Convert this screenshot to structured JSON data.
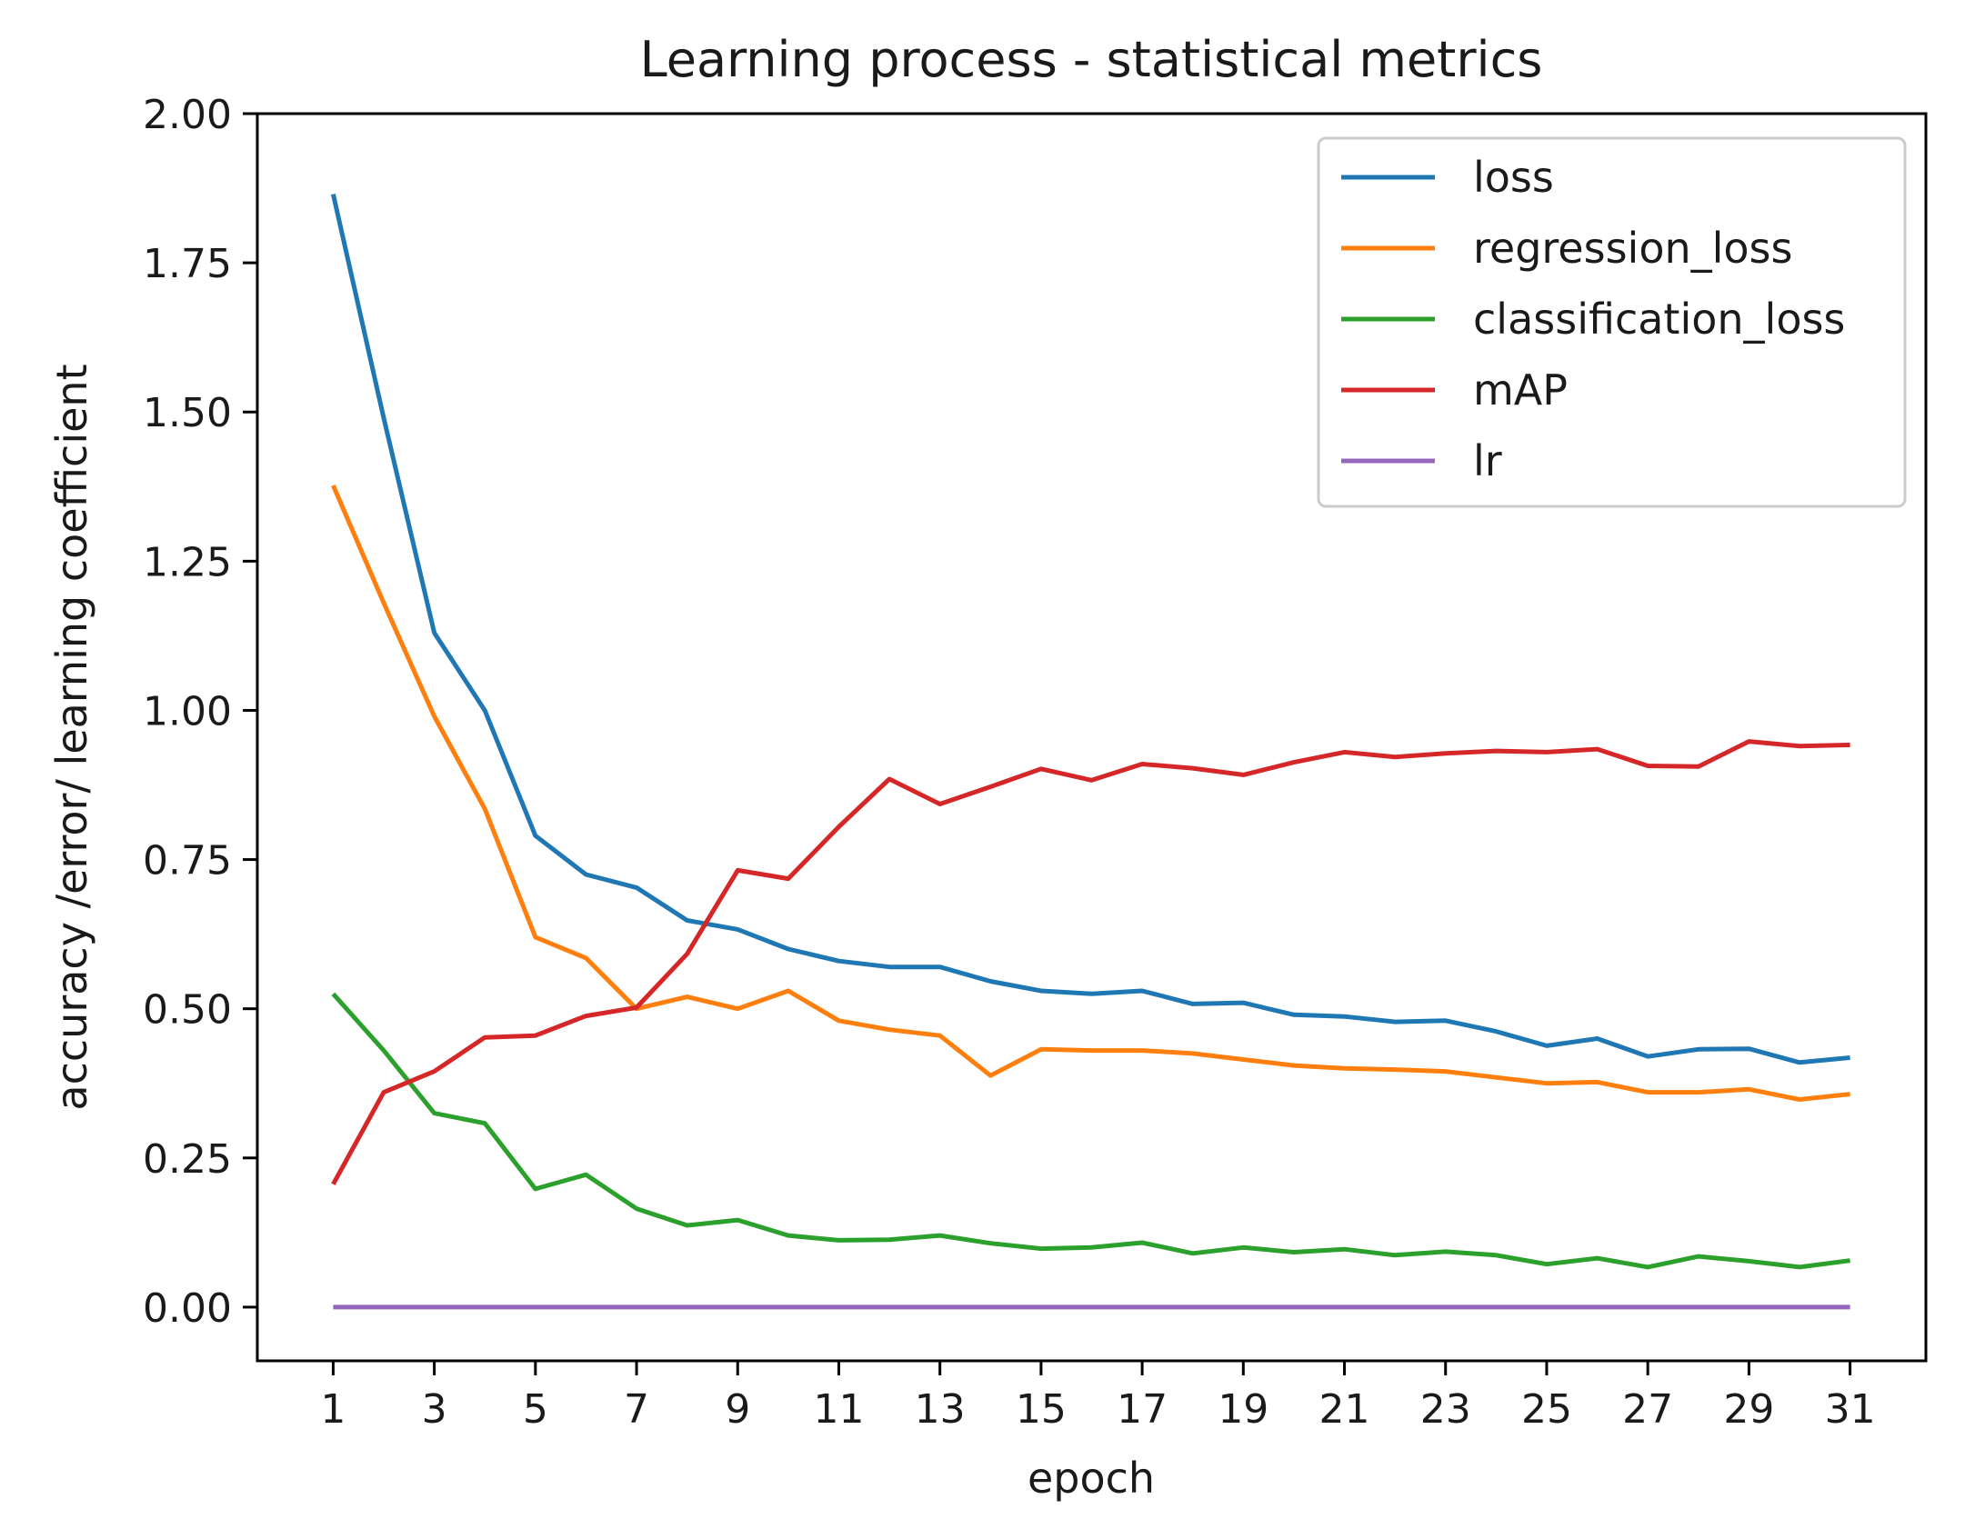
{
  "chart_data": {
    "type": "line",
    "title": "Learning process - statistical metrics",
    "xlabel": "epoch",
    "ylabel": "accuracy /error/ learning coefficient",
    "xlim": [
      -0.5,
      32.5
    ],
    "ylim": [
      -0.09,
      2.0
    ],
    "x": [
      1,
      2,
      3,
      4,
      5,
      6,
      7,
      8,
      9,
      10,
      11,
      12,
      13,
      14,
      15,
      16,
      17,
      18,
      19,
      20,
      21,
      22,
      23,
      24,
      25,
      26,
      27,
      28,
      29,
      30,
      31
    ],
    "x_ticks": [
      "1",
      "3",
      "5",
      "7",
      "9",
      "11",
      "13",
      "15",
      "17",
      "19",
      "21",
      "23",
      "25",
      "27",
      "29",
      "31"
    ],
    "y_ticks": [
      "0.00",
      "0.25",
      "0.50",
      "0.75",
      "1.00",
      "1.25",
      "1.50",
      "1.75",
      "2.00"
    ],
    "legend_position": "top-right",
    "series": [
      {
        "name": "loss",
        "color": "#1f77b4",
        "values": [
          1.865,
          1.49,
          1.13,
          1.0,
          0.79,
          0.725,
          0.703,
          0.648,
          0.633,
          0.6,
          0.58,
          0.57,
          0.57,
          0.546,
          0.53,
          0.525,
          0.53,
          0.508,
          0.51,
          0.49,
          0.487,
          0.478,
          0.48,
          0.462,
          0.438,
          0.45,
          0.42,
          0.432,
          0.433,
          0.41,
          0.418
        ]
      },
      {
        "name": "regression_loss",
        "color": "#ff7f0e",
        "values": [
          1.377,
          1.18,
          0.99,
          0.835,
          0.62,
          0.585,
          0.5,
          0.52,
          0.5,
          0.53,
          0.48,
          0.465,
          0.455,
          0.388,
          0.432,
          0.43,
          0.43,
          0.425,
          0.415,
          0.405,
          0.4,
          0.398,
          0.395,
          0.385,
          0.375,
          0.377,
          0.36,
          0.36,
          0.365,
          0.348,
          0.357
        ]
      },
      {
        "name": "classification_loss",
        "color": "#2ca02c",
        "values": [
          0.525,
          0.43,
          0.325,
          0.308,
          0.198,
          0.222,
          0.165,
          0.137,
          0.146,
          0.12,
          0.112,
          0.113,
          0.12,
          0.107,
          0.098,
          0.1,
          0.108,
          0.09,
          0.1,
          0.092,
          0.097,
          0.087,
          0.093,
          0.087,
          0.072,
          0.082,
          0.067,
          0.085,
          0.077,
          0.067,
          0.078
        ]
      },
      {
        "name": "mAP",
        "color": "#d62728",
        "values": [
          0.206,
          0.36,
          0.395,
          0.452,
          0.455,
          0.488,
          0.502,
          0.592,
          0.732,
          0.718,
          0.805,
          0.885,
          0.843,
          0.872,
          0.902,
          0.883,
          0.91,
          0.903,
          0.892,
          0.913,
          0.93,
          0.922,
          0.928,
          0.932,
          0.93,
          0.935,
          0.907,
          0.906,
          0.948,
          0.94,
          0.942
        ]
      },
      {
        "name": "lr",
        "color": "#9467bd",
        "values": [
          1e-05,
          1e-05,
          1e-05,
          1e-05,
          1e-05,
          1e-05,
          1e-05,
          1e-05,
          1e-05,
          1e-05,
          1e-05,
          1e-05,
          1e-05,
          1e-05,
          1e-05,
          1e-05,
          1e-05,
          1e-05,
          1e-05,
          1e-05,
          1e-05,
          1e-05,
          1e-05,
          1e-05,
          1e-05,
          1e-05,
          1e-05,
          1e-05,
          1e-05,
          1e-05,
          1e-05
        ]
      }
    ]
  }
}
